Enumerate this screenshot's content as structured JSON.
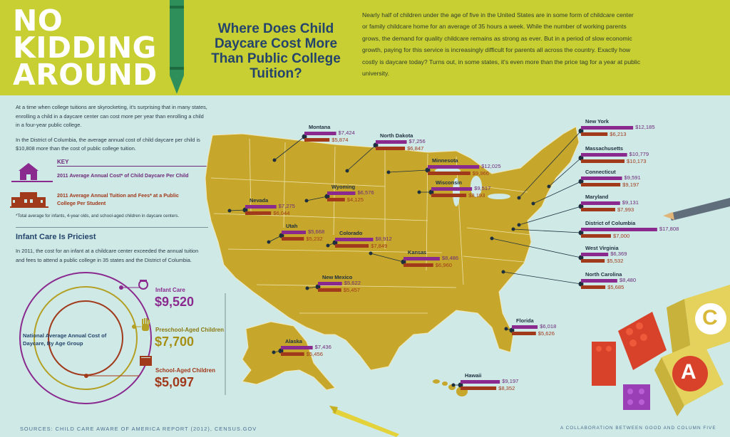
{
  "header": {
    "title_lines": [
      "NO",
      "KIDDING",
      "AROUND"
    ],
    "subtitle": "Where Does Child Daycare Cost More Than Public College Tuition?",
    "intro": "Nearly half of children under the age of five in the United States are in some form of childcare center or family childcare home for an average of 35 hours a week. While the number of working parents grows, the demand for quality childcare remains as strong as ever. But in a period of slow economic growth, paying for this service is increasingly difficult for parents all across the country. Exactly how costly is daycare today? Turns out, in some states, it's even more than the price tag for a year at public university."
  },
  "left": {
    "p1": "At a time when college tuitions are skyrocketing, it's surprising that in many states, enrolling a child in a daycare center can cost more per year than enrolling a child in a four-year public college.",
    "p2": "In the District of Columbia, the average annual cost of child daycare per child is $10,808 more than the cost of public college tuition.",
    "key_title": "KEY",
    "key_daycare": "2011 Average Annual Cost* of Child Daycare Per Child",
    "key_tuition": "2011 Average Annual Tuition and Fees* at a Public College Per Student",
    "key_note": "*Total average for infants, 4-year olds, and school-aged children in daycare centers.",
    "infant_title": "Infant Care Is Priciest",
    "infant_text": "In 2011, the cost for an infant at a childcare center exceeded the annual tuition and fees to attend a public college in 35 states and the District of Columbia.",
    "national_label": "National Average Annual Cost of Daycare, By Age Group",
    "groups": [
      {
        "label": "Infant Care",
        "value": "$9,520",
        "color": "#8a2a8f"
      },
      {
        "label": "Preschool-Aged Children",
        "value": "$7,700",
        "color": "#b3a024"
      },
      {
        "label": "School-Aged Children",
        "value": "$5,097",
        "color": "#a1391b"
      }
    ]
  },
  "states": [
    {
      "name": "Montana",
      "daycare": "$7,424",
      "tuition": "$5,874",
      "daycare_num": 7424,
      "tuition_num": 5874
    },
    {
      "name": "North Dakota",
      "daycare": "$7,256",
      "tuition": "$6,847",
      "daycare_num": 7256,
      "tuition_num": 6847
    },
    {
      "name": "Minnesota",
      "daycare": "$12,025",
      "tuition": "$9,966",
      "daycare_num": 12025,
      "tuition_num": 9966
    },
    {
      "name": "Wyoming",
      "daycare": "$6,576",
      "tuition": "$4,125",
      "daycare_num": 6576,
      "tuition_num": 4125
    },
    {
      "name": "Wisconsin",
      "daycare": "$9,517",
      "tuition": "$8,193",
      "daycare_num": 9517,
      "tuition_num": 8193
    },
    {
      "name": "Nevada",
      "daycare": "$7,275",
      "tuition": "$6,044",
      "daycare_num": 7275,
      "tuition_num": 6044
    },
    {
      "name": "Utah",
      "daycare": "$5,668",
      "tuition": "$5,232",
      "daycare_num": 5668,
      "tuition_num": 5232
    },
    {
      "name": "Colorado",
      "daycare": "$8,912",
      "tuition": "$7,849",
      "daycare_num": 8912,
      "tuition_num": 7849
    },
    {
      "name": "Kansas",
      "daycare": "$8,486",
      "tuition": "$6,960",
      "daycare_num": 8486,
      "tuition_num": 6960
    },
    {
      "name": "New Mexico",
      "daycare": "$5,622",
      "tuition": "$5,457",
      "daycare_num": 5622,
      "tuition_num": 5457
    },
    {
      "name": "Alaska",
      "daycare": "$7,436",
      "tuition": "$5,456",
      "daycare_num": 7436,
      "tuition_num": 5456
    },
    {
      "name": "Hawaii",
      "daycare": "$9,197",
      "tuition": "$8,352",
      "daycare_num": 9197,
      "tuition_num": 8352
    },
    {
      "name": "Florida",
      "daycare": "$6,018",
      "tuition": "$5,626",
      "daycare_num": 6018,
      "tuition_num": 5626
    },
    {
      "name": "New York",
      "daycare": "$12,185",
      "tuition": "$6,213",
      "daycare_num": 12185,
      "tuition_num": 6213
    },
    {
      "name": "Massachusetts",
      "daycare": "$10,779",
      "tuition": "$10,173",
      "daycare_num": 10779,
      "tuition_num": 10173
    },
    {
      "name": "Connecticut",
      "daycare": "$9,591",
      "tuition": "$9,197",
      "daycare_num": 9591,
      "tuition_num": 9197
    },
    {
      "name": "Maryland",
      "daycare": "$9,131",
      "tuition": "$7,993",
      "daycare_num": 9131,
      "tuition_num": 7993
    },
    {
      "name": "District of Columbia",
      "daycare": "$17,808",
      "tuition": "$7,000",
      "daycare_num": 17808,
      "tuition_num": 7000
    },
    {
      "name": "West Virginia",
      "daycare": "$6,369",
      "tuition": "$5,532",
      "daycare_num": 6369,
      "tuition_num": 5532
    },
    {
      "name": "North Carolina",
      "daycare": "$8,480",
      "tuition": "$5,685",
      "daycare_num": 8480,
      "tuition_num": 5685
    }
  ],
  "colors": {
    "header": "#c8cf33",
    "background": "#cfe9e6",
    "map": "#c6a72b",
    "daycare": "#8a2a8f",
    "tuition": "#a1391b",
    "title_blue": "#24446b"
  },
  "blocks": [
    "C",
    "A"
  ],
  "footer": {
    "sources": "SOURCES: CHILD CARE AWARE OF AMERICA REPORT (2012), CENSUS.GOV",
    "credit": "A COLLABORATION BETWEEN GOOD AND COLUMN FIVE"
  }
}
